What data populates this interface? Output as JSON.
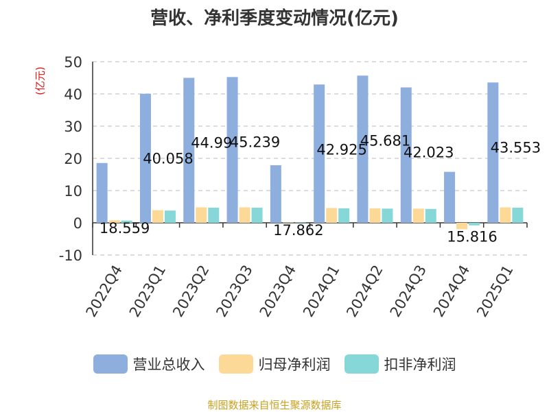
{
  "chart_data": {
    "type": "bar",
    "title": "营收、净利季度变动情况(亿元)",
    "unit_label": "(亿元)",
    "categories": [
      "2022Q4",
      "2023Q1",
      "2023Q2",
      "2023Q3",
      "2023Q4",
      "2024Q1",
      "2024Q2",
      "2024Q3",
      "2024Q4",
      "2025Q1"
    ],
    "series": [
      {
        "name": "营业总收入",
        "color": "#8eaedd",
        "values": [
          18.559,
          40.058,
          44.99,
          45.239,
          17.862,
          42.925,
          45.681,
          42.023,
          15.816,
          43.553
        ]
      },
      {
        "name": "归母净利润",
        "color": "#fdd998",
        "values": [
          0.8,
          3.9,
          4.8,
          4.8,
          0.1,
          4.6,
          4.5,
          4.4,
          -2.0,
          4.8
        ]
      },
      {
        "name": "扣非净利润",
        "color": "#86d8d8",
        "values": [
          0.7,
          3.8,
          4.7,
          4.7,
          0.1,
          4.5,
          4.4,
          4.3,
          -0.8,
          4.7
        ]
      }
    ],
    "data_labels": [
      "18.559",
      "40.058",
      "44.99",
      "45.239",
      "17.862",
      "42.925",
      "45.681",
      "42.023",
      "15.816",
      "43.553"
    ],
    "y_ticks": [
      "-10",
      "0",
      "10",
      "20",
      "30",
      "40",
      "50"
    ],
    "ylim": [
      -10,
      50
    ],
    "grid": true,
    "legend_position": "bottom"
  },
  "source": {
    "text": "制图数据来自恒生聚源数据库",
    "color": "#c8a020"
  }
}
